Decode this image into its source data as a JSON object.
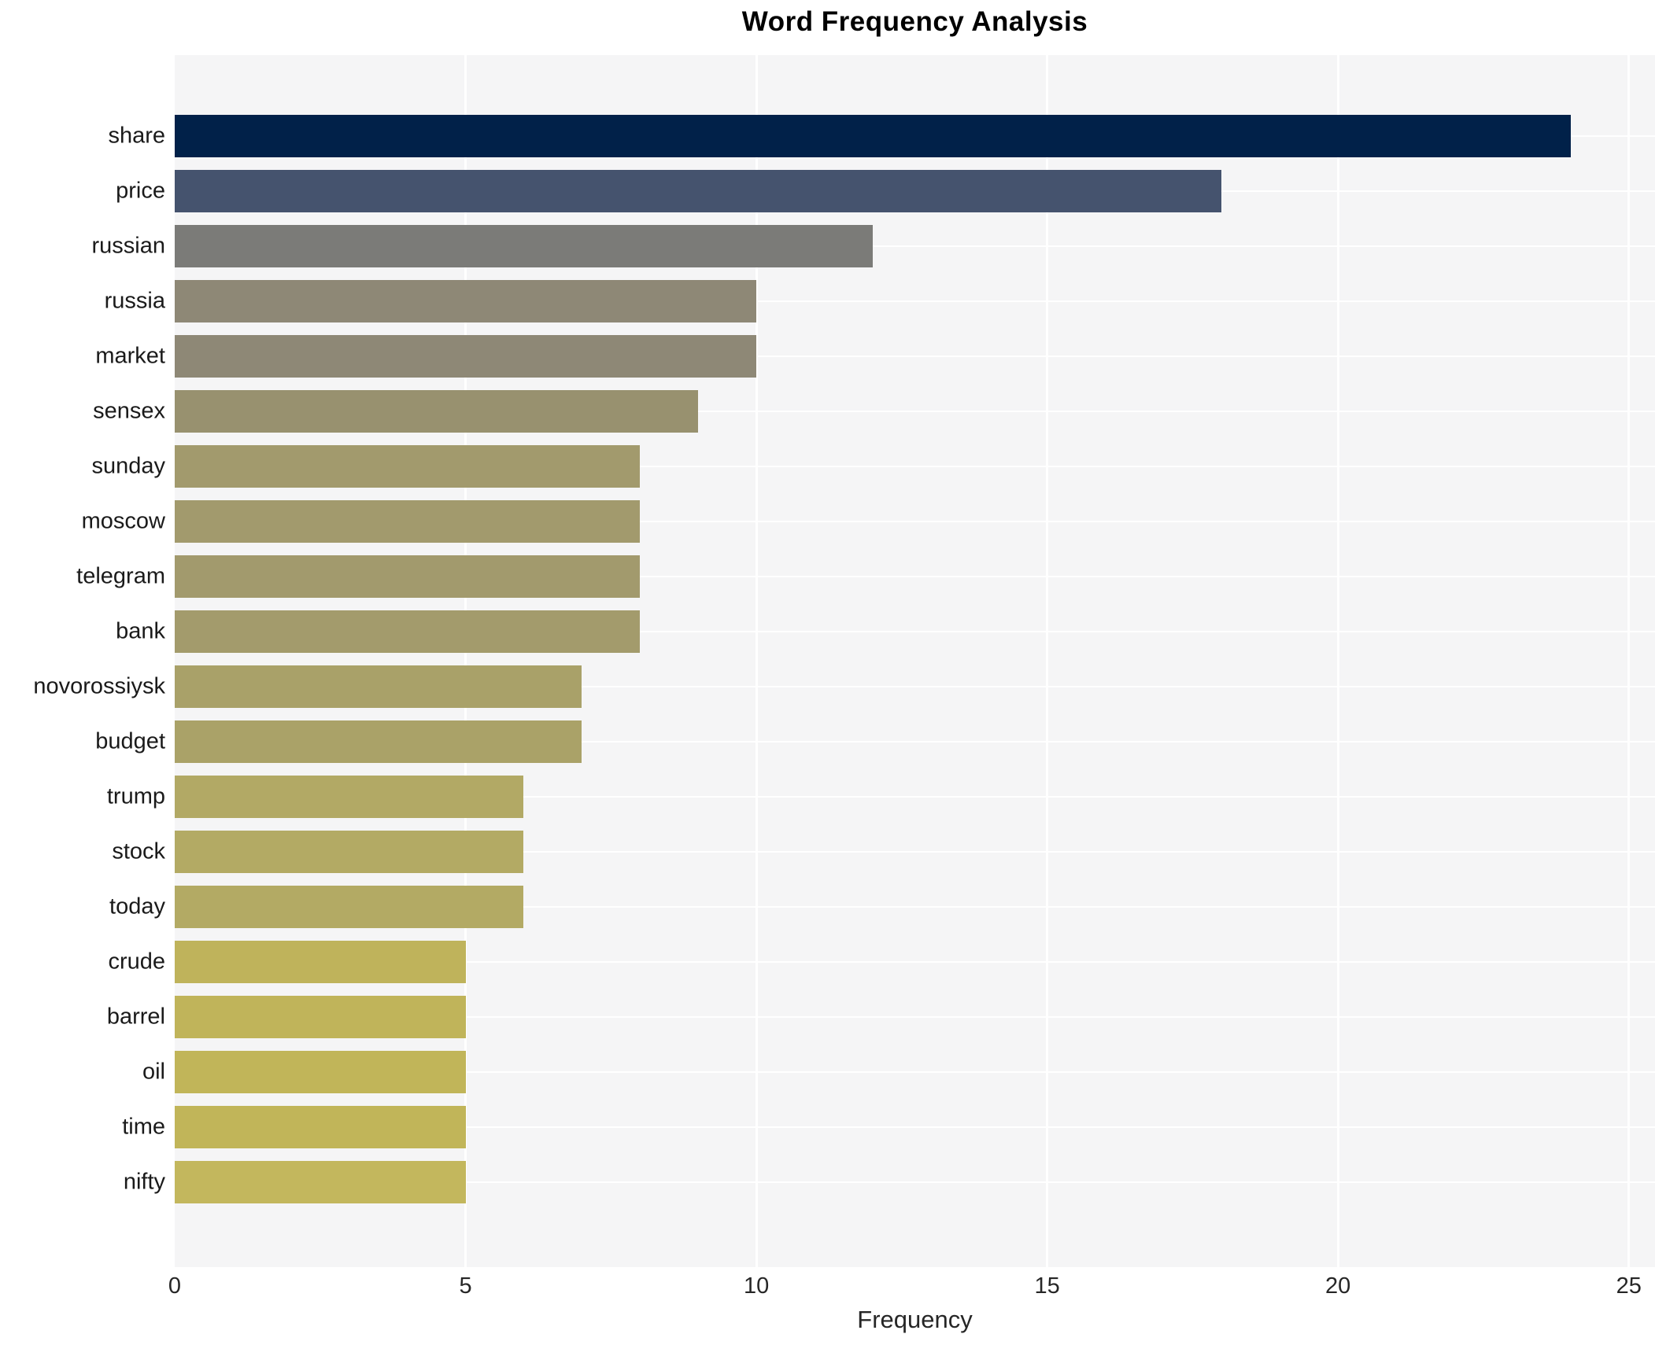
{
  "title": "Word Frequency Analysis",
  "chart_data": {
    "type": "bar",
    "orientation": "horizontal",
    "title": "Word Frequency Analysis",
    "xlabel": "Frequency",
    "ylabel": "",
    "categories": [
      "share",
      "price",
      "russian",
      "russia",
      "market",
      "sensex",
      "sunday",
      "moscow",
      "telegram",
      "bank",
      "novorossiysk",
      "budget",
      "trump",
      "stock",
      "today",
      "crude",
      "barrel",
      "oil",
      "time",
      "nifty"
    ],
    "values": [
      24,
      18,
      12,
      10,
      10,
      9,
      8,
      8,
      8,
      8,
      7,
      7,
      6,
      6,
      6,
      5,
      5,
      5,
      5,
      5
    ],
    "bar_colors": [
      "#012149",
      "#45536e",
      "#7b7b78",
      "#8e8876",
      "#8e8876",
      "#98916f",
      "#a29a6d",
      "#a29a6d",
      "#a29a6d",
      "#a39b6c",
      "#a9a169",
      "#aaa268",
      "#b2a965",
      "#b3aa64",
      "#b3aa64",
      "#bfb35b",
      "#c0b45a",
      "#c1b559",
      "#c1b559",
      "#c3b75d"
    ],
    "xticks": [
      0,
      5,
      10,
      15,
      20,
      25
    ],
    "xlim": [
      0,
      25.45
    ],
    "grid": true,
    "legend": "none",
    "plot_background": "#f5f5f6",
    "grid_color": "#ffffff",
    "tick_text_color": "#262626",
    "label_text_color": "#1a1a1a",
    "title_color": "#000000"
  }
}
